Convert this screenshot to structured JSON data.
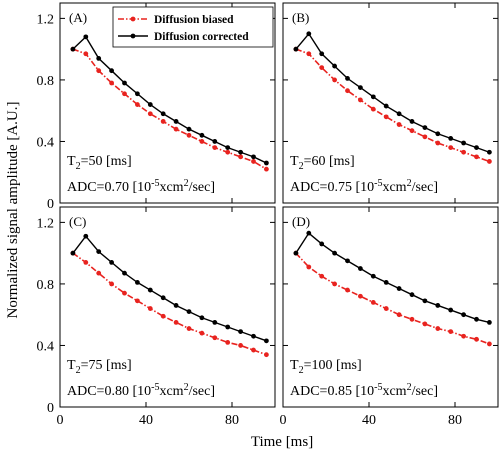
{
  "chart_data": {
    "type": "line",
    "ylabel": "Normalized signal amplitude [A.U.]",
    "xlabel": "Time [ms]",
    "xlim": [
      0,
      100
    ],
    "ylim": [
      0,
      1.3
    ],
    "xticks": [
      0,
      40,
      80
    ],
    "yticks": [
      0,
      0.4,
      0.8,
      1.2
    ],
    "ytick_labels": [
      "0",
      "0.4",
      "0.8",
      "1.2"
    ],
    "grid": false,
    "legend": {
      "placement": "top-right of panel A",
      "entries": [
        {
          "label": "Diffusion biased",
          "color": "#e8231f",
          "style": "dash-dot"
        },
        {
          "label": "Diffusion corrected",
          "color": "#000000",
          "style": "solid"
        }
      ]
    },
    "panels": [
      {
        "label": "(A)",
        "t2_prefix": "T",
        "t2_sub": "2",
        "t2_value": "=50 [ms]",
        "adc_prefix": "ADC=0.70 [10",
        "adc_sup1": "-5",
        "adc_mid": "xcm",
        "adc_sup2": "2",
        "adc_suffix": "/sec]",
        "x": [
          6,
          12,
          18,
          24,
          30,
          36,
          42,
          48,
          54,
          60,
          66,
          72,
          78,
          84,
          90,
          96
        ],
        "series": [
          {
            "name": "Diffusion biased",
            "values": [
              1.0,
              0.97,
              0.86,
              0.78,
              0.71,
              0.64,
              0.58,
              0.53,
              0.48,
              0.44,
              0.4,
              0.36,
              0.33,
              0.3,
              0.27,
              0.22
            ]
          },
          {
            "name": "Diffusion corrected",
            "values": [
              1.0,
              1.08,
              0.94,
              0.86,
              0.78,
              0.71,
              0.64,
              0.58,
              0.53,
              0.48,
              0.44,
              0.4,
              0.36,
              0.33,
              0.3,
              0.26
            ]
          }
        ]
      },
      {
        "label": "(B)",
        "t2_prefix": "T",
        "t2_sub": "2",
        "t2_value": "=60 [ms]",
        "adc_prefix": "ADC=0.75 [10",
        "adc_sup1": "-5",
        "adc_mid": "xcm",
        "adc_sup2": "2",
        "adc_suffix": "/sec]",
        "x": [
          6,
          12,
          18,
          24,
          30,
          36,
          42,
          48,
          54,
          60,
          66,
          72,
          78,
          84,
          90,
          96
        ],
        "series": [
          {
            "name": "Diffusion biased",
            "values": [
              1.0,
              0.97,
              0.88,
              0.8,
              0.73,
              0.67,
              0.61,
              0.56,
              0.51,
              0.47,
              0.43,
              0.39,
              0.36,
              0.33,
              0.3,
              0.27
            ]
          },
          {
            "name": "Diffusion corrected",
            "values": [
              1.0,
              1.1,
              0.97,
              0.89,
              0.81,
              0.75,
              0.69,
              0.63,
              0.58,
              0.53,
              0.49,
              0.45,
              0.42,
              0.39,
              0.36,
              0.33
            ]
          }
        ]
      },
      {
        "label": "(C)",
        "t2_prefix": "T",
        "t2_sub": "2",
        "t2_value": "=75 [ms]",
        "adc_prefix": "ADC=0.80 [10",
        "adc_sup1": "-5",
        "adc_mid": "xcm",
        "adc_sup2": "2",
        "adc_suffix": "/sec]",
        "x": [
          6,
          12,
          18,
          24,
          30,
          36,
          42,
          48,
          54,
          60,
          66,
          72,
          78,
          84,
          90,
          96
        ],
        "series": [
          {
            "name": "Diffusion biased",
            "values": [
              1.0,
              0.94,
              0.87,
              0.8,
              0.74,
              0.69,
              0.64,
              0.59,
              0.55,
              0.51,
              0.48,
              0.45,
              0.42,
              0.4,
              0.37,
              0.34
            ]
          },
          {
            "name": "Diffusion corrected",
            "values": [
              1.0,
              1.11,
              1.01,
              0.94,
              0.87,
              0.81,
              0.76,
              0.71,
              0.66,
              0.62,
              0.58,
              0.55,
              0.52,
              0.49,
              0.46,
              0.43
            ]
          }
        ]
      },
      {
        "label": "(D)",
        "t2_prefix": "T",
        "t2_sub": "2",
        "t2_value": "=100 [ms]",
        "adc_prefix": "ADC=0.85 [10",
        "adc_sup1": "-5",
        "adc_mid": "xcm",
        "adc_sup2": "2",
        "adc_suffix": "/sec]",
        "x": [
          6,
          12,
          18,
          24,
          30,
          36,
          42,
          48,
          54,
          60,
          66,
          72,
          78,
          84,
          90,
          96
        ],
        "series": [
          {
            "name": "Diffusion biased",
            "values": [
              1.0,
              0.91,
              0.85,
              0.8,
              0.76,
              0.72,
              0.68,
              0.64,
              0.6,
              0.57,
              0.54,
              0.51,
              0.49,
              0.46,
              0.44,
              0.41
            ]
          },
          {
            "name": "Diffusion corrected",
            "values": [
              1.0,
              1.13,
              1.06,
              1.0,
              0.95,
              0.9,
              0.85,
              0.81,
              0.77,
              0.73,
              0.69,
              0.66,
              0.63,
              0.6,
              0.57,
              0.55
            ]
          }
        ]
      }
    ]
  }
}
